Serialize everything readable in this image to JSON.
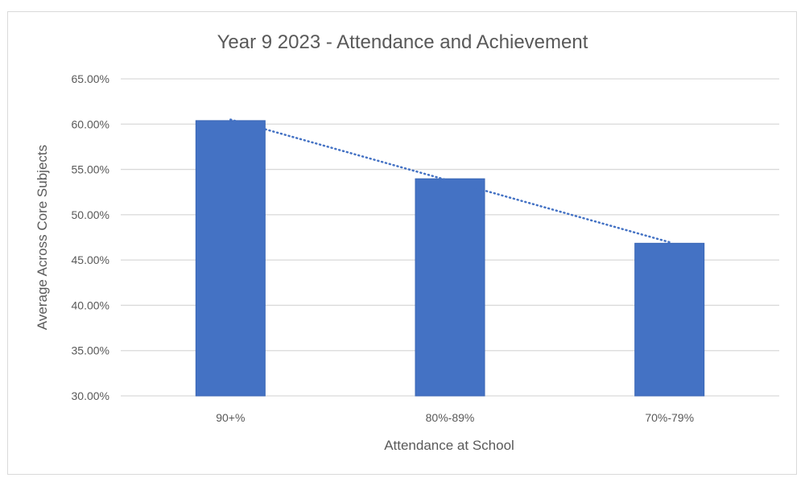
{
  "chart_data": {
    "type": "bar",
    "title": "Year 9 2023 - Attendance and Achievement",
    "xlabel": "Attendance at School",
    "ylabel": "Average Across Core Subjects",
    "categories": [
      "90+%",
      "80%-89%",
      "70%-79%"
    ],
    "values": [
      60.39,
      53.97,
      46.85
    ],
    "ylim": [
      30,
      65
    ],
    "yticks": [
      "30.00%",
      "35.00%",
      "40.00%",
      "45.00%",
      "50.00%",
      "55.00%",
      "60.00%",
      "65.00%"
    ],
    "ytick_values": [
      30,
      35,
      40,
      45,
      50,
      55,
      60,
      65
    ],
    "grid": true,
    "trendline": "linear",
    "bar_color": "#4472C4",
    "trendline_color": "#4472C4"
  }
}
